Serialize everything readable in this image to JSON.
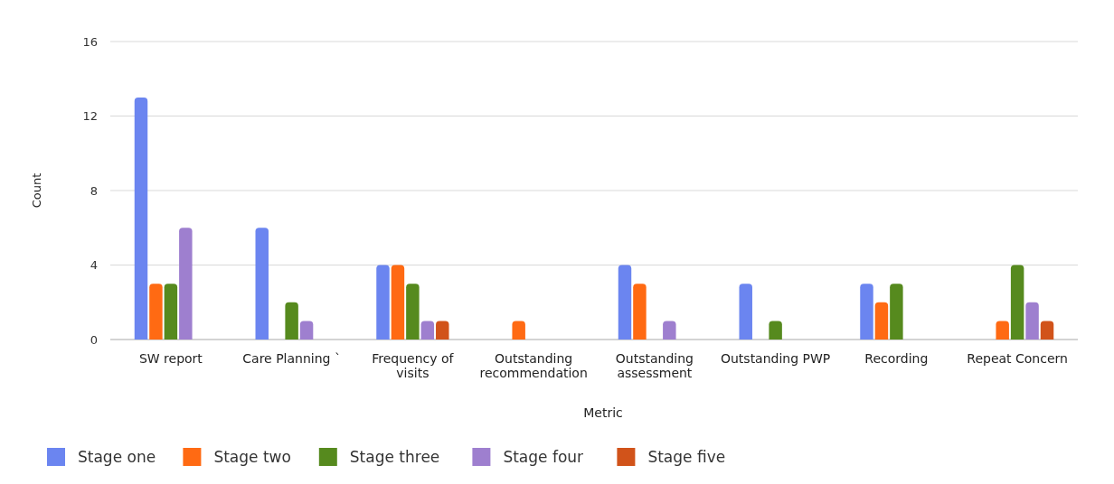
{
  "chart_data": {
    "type": "bar",
    "xlabel": "Metric",
    "ylabel": "Count",
    "categories": [
      "SW report",
      "Care Planning `",
      "Frequency of visits",
      "Outstanding recommendation",
      "Outstanding assessment",
      "Outstanding PWP",
      "Recording",
      "Repeat Concern"
    ],
    "series": [
      {
        "name": "Stage one",
        "color": "#6b85f0",
        "values": [
          13,
          6,
          4,
          null,
          4,
          3,
          3,
          null
        ]
      },
      {
        "name": "Stage two",
        "color": "#ff6a13",
        "values": [
          3,
          null,
          4,
          1,
          3,
          null,
          2,
          1
        ]
      },
      {
        "name": "Stage three",
        "color": "#568a1e",
        "values": [
          3,
          2,
          3,
          null,
          null,
          1,
          3,
          4
        ]
      },
      {
        "name": "Stage four",
        "color": "#9e7fcf",
        "values": [
          6,
          1,
          1,
          null,
          1,
          null,
          null,
          2
        ]
      },
      {
        "name": "Stage five",
        "color": "#d1531a",
        "values": [
          null,
          null,
          1,
          null,
          null,
          null,
          null,
          1
        ]
      }
    ],
    "ylim": [
      0,
      16
    ],
    "yticks": [
      0,
      4,
      8,
      12,
      16
    ],
    "grid": "y",
    "legend": "bottom left"
  }
}
